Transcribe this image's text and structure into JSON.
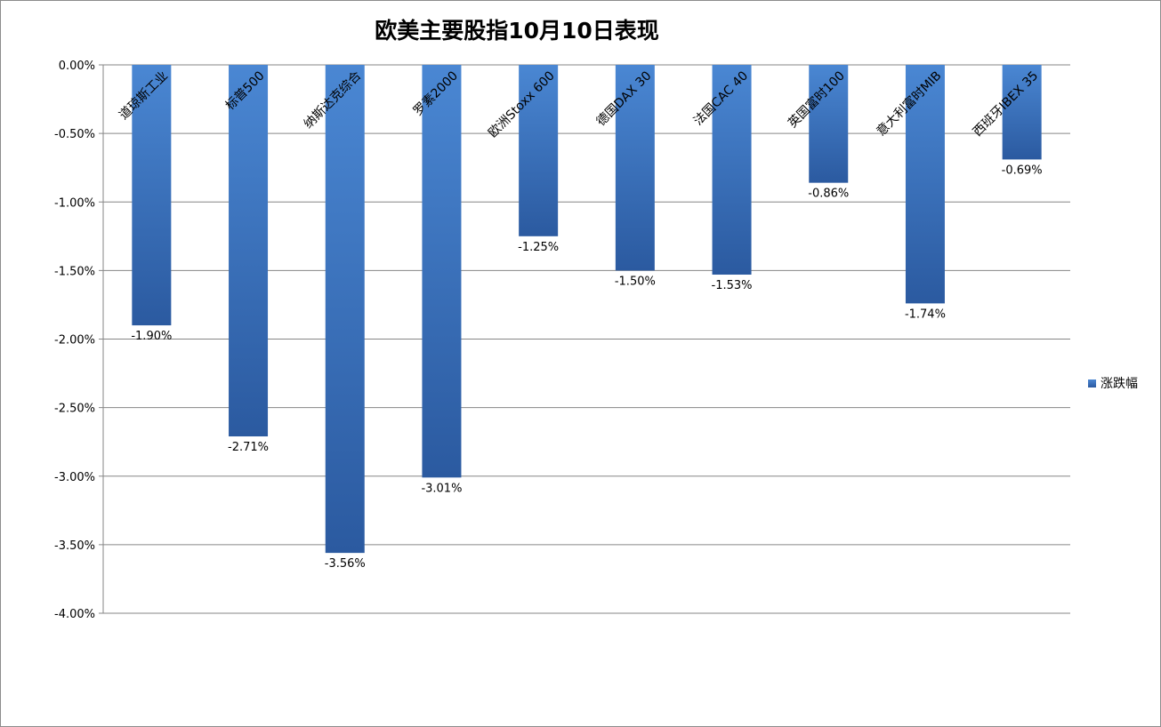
{
  "chart_data": {
    "type": "bar",
    "title": "欧美主要股指10月10日表现",
    "categories": [
      "道琼斯工业",
      "标普500",
      "纳斯达克综合",
      "罗素2000",
      "欧洲Stoxx 600",
      "德国DAX 30",
      "法国CAC 40",
      "英国富时100",
      "意大利富时MIB",
      "西班牙IBEX 35"
    ],
    "series": [
      {
        "name": "涨跌幅",
        "values": [
          -1.9,
          -2.71,
          -3.56,
          -3.01,
          -1.25,
          -1.5,
          -1.53,
          -0.86,
          -1.74,
          -0.69
        ],
        "labels": [
          "-1.90%",
          "-2.71%",
          "-3.56%",
          "-3.01%",
          "-1.25%",
          "-1.50%",
          "-1.53%",
          "-0.86%",
          "-1.74%",
          "-0.69%"
        ]
      }
    ],
    "ylim": [
      -4.0,
      0.0
    ],
    "yticks": [
      0.0,
      -0.5,
      -1.0,
      -1.5,
      -2.0,
      -2.5,
      -3.0,
      -3.5,
      -4.0
    ],
    "ytick_labels": [
      "0.00%",
      "-0.50%",
      "-1.00%",
      "-1.50%",
      "-2.00%",
      "-2.50%",
      "-3.00%",
      "-3.50%",
      "-4.00%"
    ],
    "grid": true,
    "legend_position": "right",
    "bar_color_top": "#4a87d3",
    "bar_color_bottom": "#2b5aa0",
    "gridline_color": "#868686"
  }
}
